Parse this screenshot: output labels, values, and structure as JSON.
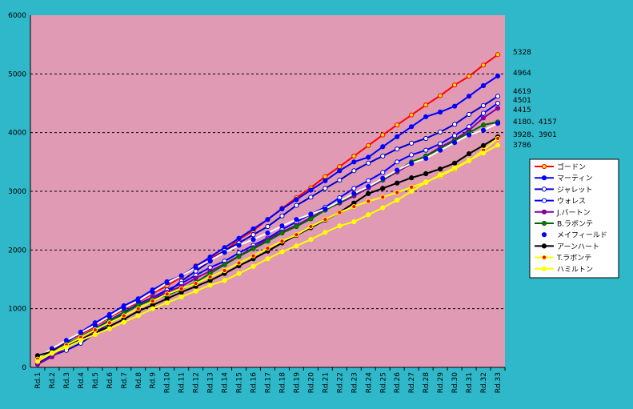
{
  "colors": {
    "background": "#2fb8c9",
    "plot_area": "#e09ab4",
    "legend_bg": "#ffffff"
  },
  "chart_data": {
    "type": "line",
    "title": "",
    "xlabel": "",
    "ylabel": "",
    "ylim": [
      0,
      6000
    ],
    "yticks": [
      0,
      1000,
      2000,
      3000,
      4000,
      5000,
      6000
    ],
    "grid": "horizontal dashed",
    "legend_position": "right",
    "categories": [
      "Rd.1",
      "Rd.2",
      "Rd.3",
      "Rd.4",
      "Rd.5",
      "Rd.6",
      "Rd.7",
      "Rd.8",
      "Rd.9",
      "Rd.10",
      "Rd.11",
      "Rd.12",
      "Rd.13",
      "Rd.14",
      "Rd.15",
      "Rd.16",
      "Rd.17",
      "Rd.18",
      "Rd.19",
      "Rd.20",
      "Rd.21",
      "Rd.22",
      "Rd.23",
      "Rd.24",
      "Rd.25",
      "Rd.26",
      "Rd.27",
      "Rd.28",
      "Rd.29",
      "Rd.30",
      "Rd.31",
      "Rd.32",
      "Rd.33"
    ],
    "end_labels": [
      "5328",
      "4964",
      "4619",
      "4501",
      "4415",
      "4180、4157",
      "3928、3901",
      "3786"
    ],
    "series": [
      {
        "name": "ゴードン",
        "color": "#ff0000",
        "marker": "#ffe000",
        "values": [
          150,
          300,
          450,
          560,
          700,
          850,
          990,
          1110,
          1260,
          1390,
          1540,
          1730,
          1860,
          1980,
          2180,
          2330,
          2520,
          2710,
          2890,
          3060,
          3250,
          3420,
          3600,
          3780,
          3960,
          4130,
          4300,
          4470,
          4630,
          4810,
          4960,
          5150,
          5328
        ]
      },
      {
        "name": "マーティン",
        "color": "#0000ff",
        "marker": "#0000ff",
        "values": [
          130,
          280,
          420,
          600,
          760,
          900,
          1050,
          1170,
          1320,
          1460,
          1560,
          1720,
          1880,
          2040,
          2200,
          2360,
          2520,
          2700,
          2860,
          3020,
          3180,
          3350,
          3500,
          3580,
          3760,
          3930,
          4100,
          4270,
          4350,
          4450,
          4620,
          4800,
          4964
        ]
      },
      {
        "name": "ジャレット",
        "color": "#0000cc",
        "marker": "#ffffff",
        "values": [
          80,
          200,
          290,
          410,
          580,
          760,
          920,
          1060,
          1160,
          1270,
          1470,
          1640,
          1810,
          1990,
          2120,
          2260,
          2400,
          2580,
          2760,
          2900,
          3050,
          3190,
          3350,
          3480,
          3600,
          3720,
          3820,
          3900,
          4010,
          4140,
          4310,
          4460,
          4619
        ]
      },
      {
        "name": "ウォレス",
        "color": "#0000ff",
        "marker": "#ffffff",
        "values": [
          90,
          230,
          380,
          520,
          660,
          800,
          940,
          1080,
          1190,
          1320,
          1430,
          1570,
          1700,
          1810,
          1950,
          2080,
          2200,
          2350,
          2480,
          2610,
          2730,
          2890,
          3050,
          3180,
          3320,
          3500,
          3620,
          3700,
          3810,
          3950,
          4100,
          4330,
          4501
        ]
      },
      {
        "name": "J.バートン",
        "color": "#8000a0",
        "marker": "#8000a0",
        "values": [
          50,
          180,
          350,
          470,
          620,
          780,
          930,
          1060,
          1180,
          1280,
          1380,
          1520,
          1640,
          1760,
          1900,
          2040,
          2180,
          2310,
          2420,
          2550,
          2690,
          2800,
          2920,
          3060,
          3190,
          3330,
          3470,
          3600,
          3750,
          3880,
          4040,
          4250,
          4415
        ]
      },
      {
        "name": "B.ラボンテ",
        "color": "#006400",
        "marker": "#008000",
        "values": [
          120,
          260,
          400,
          520,
          650,
          790,
          930,
          1060,
          1150,
          1230,
          1330,
          1450,
          1600,
          1750,
          1890,
          2020,
          2150,
          2290,
          2400,
          2530,
          2680,
          2810,
          2950,
          3080,
          3200,
          3350,
          3500,
          3600,
          3720,
          3860,
          4000,
          4130,
          4180
        ]
      },
      {
        "name": "メイフィールド",
        "color": "#ffffff",
        "marker": "#0000ff",
        "values": [
          160,
          320,
          460,
          590,
          720,
          870,
          1010,
          1130,
          1280,
          1440,
          1560,
          1700,
          1820,
          1960,
          2080,
          2180,
          2290,
          2410,
          2520,
          2610,
          2700,
          2830,
          2960,
          3080,
          3220,
          3360,
          3480,
          3560,
          3700,
          3830,
          3960,
          4040,
          4157
        ]
      },
      {
        "name": "アーンハート",
        "color": "#000000",
        "marker": "#000000",
        "values": [
          200,
          270,
          370,
          470,
          580,
          700,
          820,
          960,
          1060,
          1170,
          1280,
          1380,
          1480,
          1600,
          1730,
          1850,
          1980,
          2120,
          2250,
          2380,
          2510,
          2640,
          2800,
          2960,
          3050,
          3140,
          3230,
          3300,
          3380,
          3480,
          3640,
          3780,
          3928
        ]
      },
      {
        "name": "T.ラボンテ",
        "color": "#ffff00",
        "marker": "#ff0000",
        "values": [
          140,
          250,
          380,
          510,
          640,
          760,
          880,
          1000,
          1130,
          1250,
          1340,
          1430,
          1540,
          1650,
          1780,
          1900,
          2030,
          2150,
          2260,
          2400,
          2520,
          2640,
          2740,
          2830,
          2900,
          2980,
          3070,
          3160,
          3260,
          3380,
          3520,
          3700,
          3901
        ]
      },
      {
        "name": "ハミルトン",
        "color": "#ffff00",
        "marker": "#ffff00",
        "values": [
          100,
          240,
          340,
          460,
          560,
          660,
          770,
          880,
          1000,
          1100,
          1200,
          1300,
          1400,
          1480,
          1600,
          1720,
          1850,
          1970,
          2070,
          2180,
          2300,
          2410,
          2480,
          2600,
          2720,
          2850,
          3000,
          3150,
          3280,
          3400,
          3530,
          3650,
          3786
        ]
      }
    ]
  }
}
